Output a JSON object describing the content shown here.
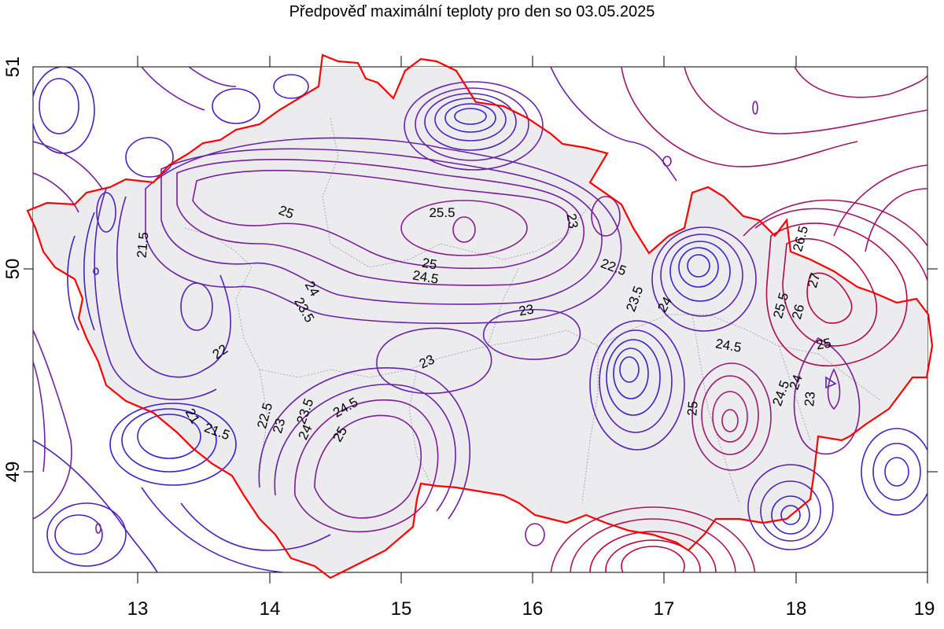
{
  "title": "Předpověď maximální teploty pro den so 03.05.2025",
  "axes": {
    "x_ticks": [
      "13",
      "14",
      "15",
      "16",
      "17",
      "18",
      "19"
    ],
    "y_ticks": [
      "51",
      "50",
      "49"
    ]
  },
  "colors": {
    "border": "#ff0000",
    "country_fill": "#ecebee",
    "cool_contour": "#3c1fc9",
    "warm_contour": "#c0003a",
    "region_lines": "#9a9a9a"
  },
  "isotherm_labels": [
    {
      "text": "25"
    },
    {
      "text": "25.5"
    },
    {
      "text": "23"
    },
    {
      "text": "21.5"
    },
    {
      "text": "25"
    },
    {
      "text": "24.5"
    },
    {
      "text": "24"
    },
    {
      "text": "23.5"
    },
    {
      "text": "22.5"
    },
    {
      "text": "23"
    },
    {
      "text": "23.5"
    },
    {
      "text": "24"
    },
    {
      "text": "26.5"
    },
    {
      "text": "27"
    },
    {
      "text": "25.5"
    },
    {
      "text": "26"
    },
    {
      "text": "22"
    },
    {
      "text": "23"
    },
    {
      "text": "24.5"
    },
    {
      "text": "25"
    },
    {
      "text": "25"
    },
    {
      "text": "24.5"
    },
    {
      "text": "24"
    },
    {
      "text": "23"
    },
    {
      "text": "21"
    },
    {
      "text": "21.5"
    },
    {
      "text": "22.5"
    },
    {
      "text": "23"
    },
    {
      "text": "23.5"
    },
    {
      "text": "24"
    },
    {
      "text": "24.5"
    },
    {
      "text": "25"
    }
  ]
}
